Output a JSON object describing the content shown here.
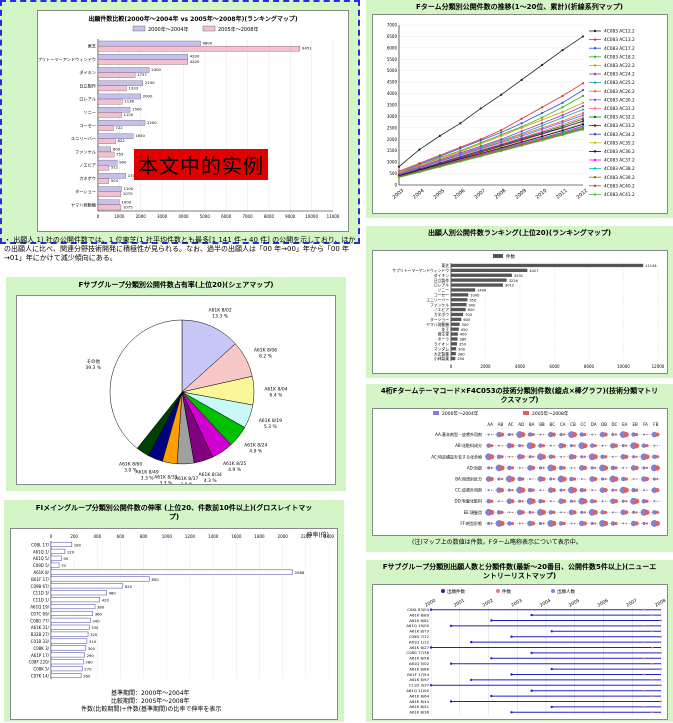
{
  "watermark": "本文中的实例",
  "note_text": "・ 出願人 1) 社の公開件数では、1 位東芝(1 社平均件数とも最多[1 141 件→ 40 件] の公開を示しており、ほかの出願人に比べ、関連分野技術開発に積極性が見られる。なお、過半の出願人は「00 年→00」年から「00 年→01」年にかけて減少傾向にある。",
  "panels": {
    "p1_title": "出願件数比較(2000年～2004年 vs 2005年～2008年)(ランキングマップ)",
    "p2_title": "Fターム分類別公開件数の推移(1～20位、累計)(折線系列マップ)",
    "p3_title": "Fサブグループ分類別公開件数占有率(上位20)(シェアマップ)",
    "p4_title": "出願人別公開件数ランキング(上位20)(ランキングマップ)",
    "p5_title": "4桁Fタームテーマコード×F4C053の技術分類別件数(縦点×棒グラフ)(技術分類マトリクスマップ)",
    "p6_title": "FIメイングループ分類別公開件数の伸率 (上位20、件数前10件以上)(グロスレイトマップ)",
    "p7_title": "Fサブグループ分類別出願人数と分類件数(最新～20番目、公開件数5件以上)(ニューエントリーリストマップ)",
    "p5_footer": "(注)マップ上の数値は件数。Fターム略称表示について表示中。",
    "p6_footer1": "基準期間：2000年～2004年",
    "p6_footer2": "比較期間：2005年～2008年",
    "p6_footer3": "件数(比較期間)÷件数(基準期間)の比率で伸率を表示",
    "p6_unit": "伸率(倍)"
  },
  "chart_data": [
    {
      "type": "bar",
      "id": "applicant-comparison",
      "title": "出願件数比較(2000年～2004年 vs 2005年～2008年)(ランキングマップ)",
      "categories": [
        "東芝",
        "サプリトーマーアンドウィンドウ",
        "ダイキン",
        "日立製作",
        "ロレアル",
        "ソニー",
        "コーセー",
        "ユニリーバー",
        "ファンケル",
        "ノエビア",
        "カネボウ",
        "ターショー",
        "ヤマハ発動機"
      ],
      "series": [
        {
          "name": "2000年～2004年",
          "values": [
            4800,
            4200,
            2400,
            2100,
            2000,
            1500,
            2200,
            1650,
            600,
            900,
            1300,
            1100,
            1000
          ]
        },
        {
          "name": "2005年～2008年",
          "values": [
            9451,
            4200,
            1737,
            1333,
            1138,
            1100,
            722,
            822,
            755,
            512,
            504,
            1070,
            1075
          ]
        }
      ],
      "xlim": [
        0,
        11000
      ],
      "xticks": [
        0,
        1000,
        2000,
        3000,
        4000,
        5000,
        6000,
        7000,
        8000,
        9000,
        10000,
        11000
      ],
      "colors": [
        "#c8c0ec",
        "#f4c0d0"
      ]
    },
    {
      "type": "line",
      "id": "fterm-trend",
      "title": "Fターム分類別公開件数の推移(1～20位、累計)(折線系列マップ)",
      "x": [
        "2003",
        "2004",
        "2005",
        "2006",
        "2007",
        "2008",
        "2009",
        "2010",
        "2011",
        "2012"
      ],
      "ylim": [
        0,
        7000
      ],
      "yticks": [
        0,
        500,
        1000,
        1500,
        2000,
        2500,
        3000,
        3500,
        4000,
        4500,
        5000,
        5500,
        6000,
        6500,
        7000
      ],
      "series": [
        {
          "name": "4C083 AC12.2",
          "values": [
            800,
            1550,
            2150,
            2700,
            3350,
            3950,
            4600,
            5250,
            5900,
            6500
          ]
        },
        {
          "name": "4C083 AC13.2",
          "values": [
            600,
            950,
            1300,
            1650,
            2000,
            2400,
            2900,
            3400,
            3900,
            4450
          ]
        },
        {
          "name": "4C083 AC17.2",
          "values": [
            550,
            900,
            1250,
            1600,
            1950,
            2300,
            2700,
            3150,
            3600,
            4150
          ]
        },
        {
          "name": "4C083 AC18.2",
          "values": [
            500,
            850,
            1200,
            1500,
            1850,
            2200,
            2550,
            2950,
            3400,
            3900
          ]
        },
        {
          "name": "4C083 AC22.2",
          "values": [
            550,
            850,
            1150,
            1450,
            1800,
            2150,
            2500,
            2850,
            3200,
            3600
          ]
        },
        {
          "name": "4C083 AC24.2",
          "values": [
            500,
            800,
            1100,
            1400,
            1700,
            2000,
            2350,
            2700,
            3050,
            3450
          ]
        },
        {
          "name": "4C083 AC25.2",
          "values": [
            450,
            750,
            1050,
            1350,
            1650,
            1950,
            2250,
            2600,
            2950,
            3300
          ]
        },
        {
          "name": "4C083 AC26.2",
          "values": [
            500,
            780,
            1060,
            1340,
            1620,
            1900,
            2200,
            2500,
            2800,
            3150
          ]
        },
        {
          "name": "4C083 AC30.2",
          "values": [
            480,
            760,
            1040,
            1300,
            1580,
            1860,
            2140,
            2440,
            2740,
            3050
          ]
        },
        {
          "name": "4C083 AC31.2",
          "values": [
            450,
            720,
            990,
            1260,
            1530,
            1800,
            2070,
            2350,
            2650,
            2950
          ]
        },
        {
          "name": "4C083 AC32.2",
          "values": [
            420,
            690,
            960,
            1230,
            1500,
            1760,
            2030,
            2300,
            2580,
            2880
          ]
        },
        {
          "name": "4C083 AC33.2",
          "values": [
            400,
            660,
            920,
            1180,
            1440,
            1700,
            1960,
            2230,
            2500,
            2800
          ]
        },
        {
          "name": "4C083 AC34.2",
          "values": [
            430,
            700,
            970,
            1220,
            1480,
            1740,
            2000,
            2260,
            2520,
            2780
          ]
        },
        {
          "name": "4C083 AC35.2",
          "values": [
            380,
            640,
            900,
            1150,
            1400,
            1650,
            1900,
            2150,
            2420,
            2700
          ]
        },
        {
          "name": "4C083 AC36.2",
          "values": [
            400,
            650,
            900,
            1140,
            1380,
            1620,
            1870,
            2120,
            2380,
            2650
          ]
        },
        {
          "name": "4C083 AC37.2",
          "values": [
            360,
            610,
            860,
            1100,
            1340,
            1580,
            1820,
            2060,
            2310,
            2580
          ]
        },
        {
          "name": "4C083 AC38.2",
          "values": [
            350,
            600,
            840,
            1080,
            1320,
            1560,
            1800,
            2040,
            2280,
            2550
          ]
        },
        {
          "name": "4C083 AC39.2",
          "values": [
            370,
            620,
            860,
            1090,
            1320,
            1550,
            1780,
            2010,
            2250,
            2500
          ]
        },
        {
          "name": "4C083 AC40.2",
          "values": [
            340,
            580,
            820,
            1050,
            1280,
            1510,
            1740,
            1970,
            2210,
            2460
          ]
        },
        {
          "name": "4C083 AC41.2",
          "values": [
            330,
            560,
            790,
            1020,
            1250,
            1480,
            1710,
            1940,
            2180,
            2420
          ]
        }
      ],
      "colors": [
        "#222222",
        "#e03030",
        "#3050e0",
        "#30b030",
        "#d0a000",
        "#a030c0",
        "#20a0a0",
        "#e07020",
        "#6060ff",
        "#ff60a0",
        "#008000",
        "#8b0000",
        "#4040a0",
        "#c0c000",
        "#000080",
        "#ff00ff",
        "#00c0c0",
        "#808000",
        "#c04040",
        "#40c040"
      ]
    },
    {
      "type": "pie",
      "id": "subgroup-share",
      "title": "Fサブグループ分類別公開件数占有率(上位20)(シェアマップ)",
      "labels": [
        "A61K 8/02",
        "A61K 8/06",
        "A61K 8/04",
        "A61K 8/19",
        "A61K 8/24",
        "A61K 8/25",
        "A61K 8/34",
        "A61K 8/37",
        "A61K 8/39",
        "A61K 8/49",
        "A61K 8/60",
        "その他"
      ],
      "values": [
        13.3,
        8.2,
        6.4,
        5.3,
        4.9,
        4.9,
        4.3,
        3.8,
        3.3,
        3.3,
        3.0,
        39.3
      ],
      "colors": [
        "#c8c8f8",
        "#f8c8c8",
        "#f8f898",
        "#c8f8f8",
        "#00c000",
        "#d000d0",
        "#800080",
        "#a0a0a0",
        "#ffa000",
        "#000080",
        "#004000",
        "#ffffff"
      ]
    },
    {
      "type": "bar",
      "id": "applicant-ranking",
      "title": "出願人別公開件数ランキング(上位20)(ランキングマップ)",
      "categories": [
        "東芝",
        "サプリトーマーアンドウィンドウ",
        "ダイキン",
        "日立製作",
        "ロレアル",
        "ソニー",
        "コーセー",
        "ユニリーバー",
        "ファンケル",
        "ノエビア",
        "カネボウ",
        "ターショー",
        "ヤマハ発動機",
        "花王",
        "資生堂",
        "ポーラ",
        "ライオン",
        "マンダム",
        "大正製薬",
        "小林製薬"
      ],
      "series": [
        {
          "name": "件数",
          "values": [
            11144,
            4427,
            3531,
            3226,
            3012,
            1400,
            1000,
            950,
            900,
            850,
            700,
            600,
            500,
            450,
            400,
            380,
            350,
            300,
            280,
            250
          ]
        }
      ],
      "xlim": [
        0,
        12000
      ],
      "xticks": [
        0,
        2000,
        4000,
        6000,
        8000,
        10000,
        12000
      ],
      "colors": [
        "#555555"
      ]
    },
    {
      "type": "bar",
      "id": "fi-growth",
      "title": "FIメイングループ分類別公開件数の伸率 (上位20、件数前10件以上)(グロスレイトマップ)",
      "categories": [
        "C08L 17/",
        "A61Q 1/",
        "A61Q 5/",
        "C09D 5/",
        "A61K 8/",
        "B01F 17/",
        "C09B 67/",
        "C11D 3/",
        "C11D 1/",
        "A61Q 19/",
        "C07C 69/",
        "C08G 77/",
        "A61K 31/",
        "B32B 27/",
        "C01B 33/",
        "C08K 3/",
        "A61P 17/",
        "C08F 220/",
        "C08K 5/",
        "C07K 14/"
      ],
      "series": [
        {
          "name": "伸率",
          "values": [
            180,
            120,
            90,
            70,
            2086,
            850,
            620,
            480,
            420,
            380,
            360,
            340,
            330,
            320,
            310,
            300,
            290,
            280,
            270,
            260
          ]
        }
      ],
      "xlim": [
        0,
        2400
      ],
      "xticks": [
        0,
        200,
        400,
        600,
        800,
        1000,
        1200,
        1400,
        1600,
        1800,
        2000,
        2200,
        2400
      ],
      "colors": [
        "#4040a0"
      ]
    },
    {
      "type": "scatter",
      "id": "tech-matrix",
      "title": "4桁Fタームテーマコード×F4C053の技術分類別件数(縦点×棒グラフ)(技術分類マトリクスマップ)",
      "legend": [
        "2000年～2004年",
        "2005年～2008年"
      ],
      "columns": [
        "AA",
        "AB",
        "AC",
        "AD",
        "BA",
        "BB",
        "BC",
        "CA",
        "CB",
        "CC",
        "DA",
        "DB",
        "DC",
        "EA",
        "EB",
        "FA",
        "FB"
      ],
      "rows": [
        "AA:基本剤型・皮膚外用剤",
        "AB:化粧料成分",
        "AC:特定構造を有する化合物",
        "AD:効能",
        "BA:用途別区分",
        "CC:皮膚外用剤",
        "DD:毛髪化粧料",
        "EE:頭髪用",
        "FF:剤型形態"
      ],
      "colors": [
        "#8080e0",
        "#e06060"
      ]
    },
    {
      "type": "scatter",
      "id": "new-entry",
      "title": "Fサブグループ分類別出願人数と分類件数(最新～20番目、公開件数5件以上)(ニューエントリーリストマップ)",
      "legend": [
        "出願件数",
        "件数",
        "出願人数"
      ],
      "x": [
        "2000",
        "2001",
        "2002",
        "2003",
        "2004",
        "2005",
        "2006",
        "2007",
        "2008"
      ],
      "categories": [
        "C08L 83/04",
        "A61K 8/89",
        "A61K 8/81",
        "A61Q 19/00",
        "A61K 8/73",
        "C09D 7/12",
        "A61Q 1/12",
        "A61K 8/27",
        "C08G 77/38",
        "A61K 8/58",
        "A61Q 5/02",
        "A61K 8/86",
        "B01F 17/54",
        "A61K 8/97",
        "C11D 3/37",
        "A61Q 11/00",
        "A61K 8/64",
        "A61K 8/44",
        "A61K 8/41",
        "A61K 8/36"
      ],
      "colors": [
        "#2020c0",
        "#e08080",
        "#8080ff"
      ]
    }
  ]
}
